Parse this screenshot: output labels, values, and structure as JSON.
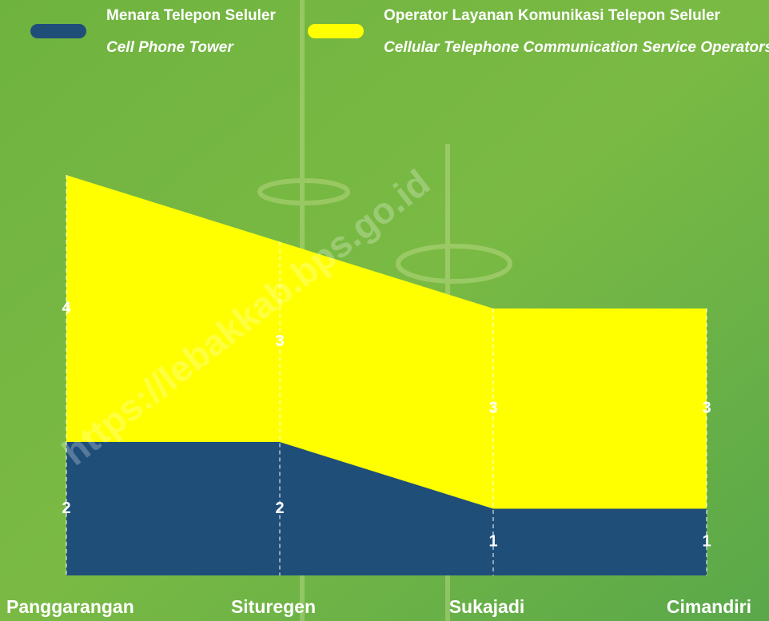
{
  "chart_data": {
    "type": "stacked_area",
    "categories": [
      "Panggarangan",
      "Situregen",
      "Sukajadi",
      "Cimandiri"
    ],
    "series": [
      {
        "name": "Menara Telepon Seluler",
        "name_en": "Cell Phone Tower",
        "color": "#1f4e79",
        "values": [
          2,
          2,
          1,
          1
        ]
      },
      {
        "name": "Operator Layanan Komunikasi Telepon Seluler",
        "name_en": "Cellular Telephone Communication Service Operators",
        "color": "#ffff00",
        "values": [
          4,
          3,
          3,
          3
        ]
      }
    ],
    "watermark": "https://lebakkab.bps.go.id"
  }
}
